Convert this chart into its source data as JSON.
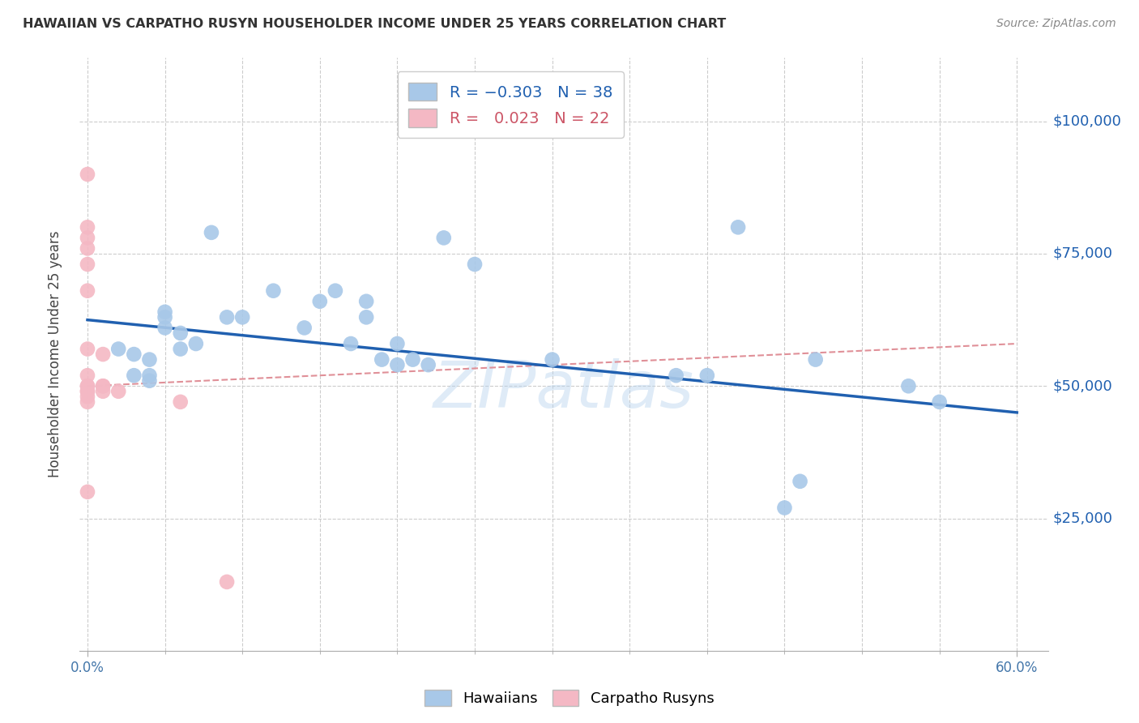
{
  "title": "HAWAIIAN VS CARPATHO RUSYN HOUSEHOLDER INCOME UNDER 25 YEARS CORRELATION CHART",
  "source": "Source: ZipAtlas.com",
  "ylabel": "Householder Income Under 25 years",
  "ytick_labels": [
    "$25,000",
    "$50,000",
    "$75,000",
    "$100,000"
  ],
  "ytick_vals": [
    25000,
    50000,
    75000,
    100000
  ],
  "ylim": [
    0,
    112000
  ],
  "xlim": [
    -0.005,
    0.62
  ],
  "hawaiian_R": -0.303,
  "hawaiian_N": 38,
  "carpatho_R": 0.023,
  "carpatho_N": 22,
  "hawaiian_color": "#a8c8e8",
  "carpatho_color": "#f4b8c4",
  "hawaiian_line_color": "#2060b0",
  "carpatho_line_color": "#e09098",
  "watermark": "ZIPatlas",
  "background_color": "#ffffff",
  "grid_color": "#cccccc",
  "hawaiian_x": [
    0.02,
    0.03,
    0.03,
    0.04,
    0.04,
    0.04,
    0.05,
    0.05,
    0.05,
    0.06,
    0.06,
    0.07,
    0.08,
    0.09,
    0.1,
    0.12,
    0.14,
    0.15,
    0.16,
    0.17,
    0.18,
    0.18,
    0.19,
    0.2,
    0.2,
    0.21,
    0.22,
    0.23,
    0.25,
    0.3,
    0.38,
    0.4,
    0.42,
    0.45,
    0.46,
    0.47,
    0.53,
    0.55
  ],
  "hawaiian_y": [
    57000,
    56000,
    52000,
    55000,
    52000,
    51000,
    61000,
    64000,
    63000,
    60000,
    57000,
    58000,
    79000,
    63000,
    63000,
    68000,
    61000,
    66000,
    68000,
    58000,
    63000,
    66000,
    55000,
    58000,
    54000,
    55000,
    54000,
    78000,
    73000,
    55000,
    52000,
    52000,
    80000,
    27000,
    32000,
    55000,
    50000,
    47000
  ],
  "carpatho_x": [
    0.0,
    0.0,
    0.0,
    0.0,
    0.0,
    0.0,
    0.0,
    0.0,
    0.0,
    0.0,
    0.0,
    0.0,
    0.0,
    0.0,
    0.0,
    0.01,
    0.01,
    0.01,
    0.01,
    0.02,
    0.06,
    0.09
  ],
  "carpatho_y": [
    90000,
    80000,
    78000,
    76000,
    73000,
    68000,
    57000,
    52000,
    50000,
    50000,
    49000,
    49000,
    48000,
    47000,
    30000,
    56000,
    50000,
    50000,
    49000,
    49000,
    47000,
    13000
  ],
  "hawaiian_trendline_x": [
    0.0,
    0.6
  ],
  "hawaiian_trendline_y": [
    62500,
    45000
  ],
  "carpatho_trendline_x": [
    0.0,
    0.6
  ],
  "carpatho_trendline_y": [
    50000,
    58000
  ],
  "xtick_minor_vals": [
    0.0,
    0.05,
    0.1,
    0.15,
    0.2,
    0.25,
    0.3,
    0.35,
    0.4,
    0.45,
    0.5,
    0.55,
    0.6
  ],
  "xtick_label_vals": [
    0.0,
    0.6
  ],
  "xtick_label_strs": [
    "0.0%",
    "60.0%"
  ]
}
